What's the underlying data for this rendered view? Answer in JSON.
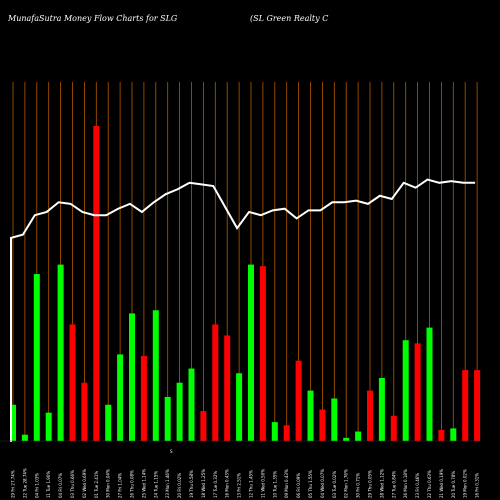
{
  "chart_data": {
    "type": "bar",
    "title": "MunafaSutra  Money Flow  Charts for SLG",
    "subtitle": "(SL  Green  Realty C",
    "grid": true,
    "ylim": [
      0,
      100
    ],
    "bar_values": [
      11.5,
      2,
      53,
      9,
      56,
      37,
      18.5,
      100,
      11.5,
      27.5,
      40.5,
      27,
      41.5,
      14,
      18.5,
      23,
      9.5,
      37,
      33.5,
      21.5,
      56,
      55.5,
      6,
      5,
      25.5,
      16,
      10,
      13.5,
      1,
      3,
      16,
      20,
      8,
      32,
      31,
      36,
      3.5,
      4,
      22.5,
      22.5
    ],
    "bar_colors": [
      "green",
      "green",
      "green",
      "green",
      "green",
      "red",
      "red",
      "red",
      "green",
      "green",
      "green",
      "red",
      "green",
      "green",
      "green",
      "green",
      "red",
      "red",
      "red",
      "green",
      "green",
      "red",
      "green",
      "red",
      "red",
      "green",
      "red",
      "green",
      "green",
      "green",
      "red",
      "green",
      "red",
      "green",
      "red",
      "green",
      "red",
      "green",
      "red",
      "red"
    ],
    "line_values": [
      63,
      64,
      70,
      71,
      74,
      73.5,
      71,
      70,
      70,
      72,
      73.5,
      71,
      74,
      76.5,
      78,
      80,
      79.5,
      79,
      72.5,
      66,
      71,
      70,
      71.5,
      72,
      69,
      71.5,
      71.5,
      74,
      74,
      74.5,
      73.5,
      76,
      75,
      80,
      78.5,
      81,
      80,
      80.5,
      80,
      80
    ],
    "x_labels": [
      "29 Fri 27.74%",
      "22 Tue 28.74%",
      "04 Fri 1.03%",
      "11 Tue 1.90%",
      "04 Fri 0.07%",
      "03 Thu 0.66%",
      "02 Wed 0.69%",
      "01 Tue 2.41%",
      "30 Mon 0.04%",
      "27 Fri 1.04%",
      "26 Thu 0.08%",
      "25 Wed 1.14%",
      "24 Tue 1.15%",
      "23 Mon 1.46%",
      "20 Fri 0.02%",
      "19 Thu 0.58%",
      "18 Wed 1.25%",
      "17 Tue 0.32%",
      "16 Mon 0.43%",
      "13 Fri 2.51%",
      "12 Thu 1.45%",
      "11 Wed 0.50%",
      "10 Tue 1.35%",
      "09 Mon 0.43%",
      "06 Fri 0.09%",
      "05 Thu 1.55%",
      "04 Wed 0.07%",
      "03 Tue 0.02%",
      "02 Mon 1.76%",
      "30 Fri 0.71%",
      "29 Thu 0.05%",
      "28 Wed 1.12%",
      "27 Tue 0.84%",
      "26 Mon 0.18%",
      "23 Fri 0.46%",
      "22 Thu 0.63%",
      "21 Wed 0.19%",
      "20 Tue 0.78%",
      "19 Mon 0.02%",
      "16 Fri 0.31%"
    ],
    "colors": {
      "green": "#00ff00",
      "red": "#ff0000",
      "grid": "#b35900",
      "line": "#ffffff",
      "background": "#000000"
    }
  }
}
